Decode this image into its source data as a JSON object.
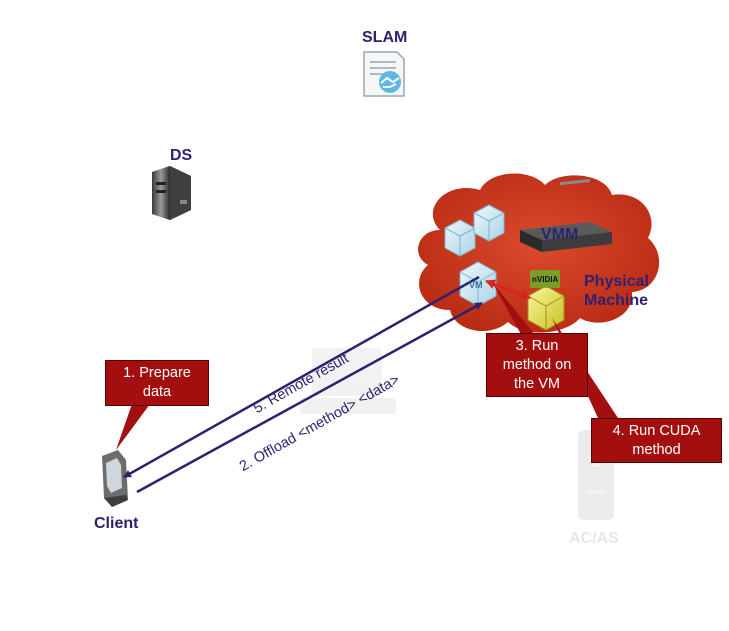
{
  "nodes": {
    "slam": "SLAM",
    "ds": "DS",
    "vmm": "VMM",
    "physical_machine": "Physical\nMachine",
    "client": "Client",
    "acas": "AC/AS",
    "vm": "VM",
    "gpu_brand": "nVIDIA"
  },
  "steps": {
    "step1": "1. Prepare\ndata",
    "step2": "2. Offload <method> <data>",
    "step3": "3. Run\nmethod on\nthe VM",
    "step4": "4. Run CUDA\nmethod",
    "step5": "5. Remote result"
  },
  "colors": {
    "cloud": "#c8361f",
    "callout": "#a30f0f",
    "arrow": "#2b2370",
    "label": "#2b2370",
    "red_arrow": "#e02020"
  }
}
